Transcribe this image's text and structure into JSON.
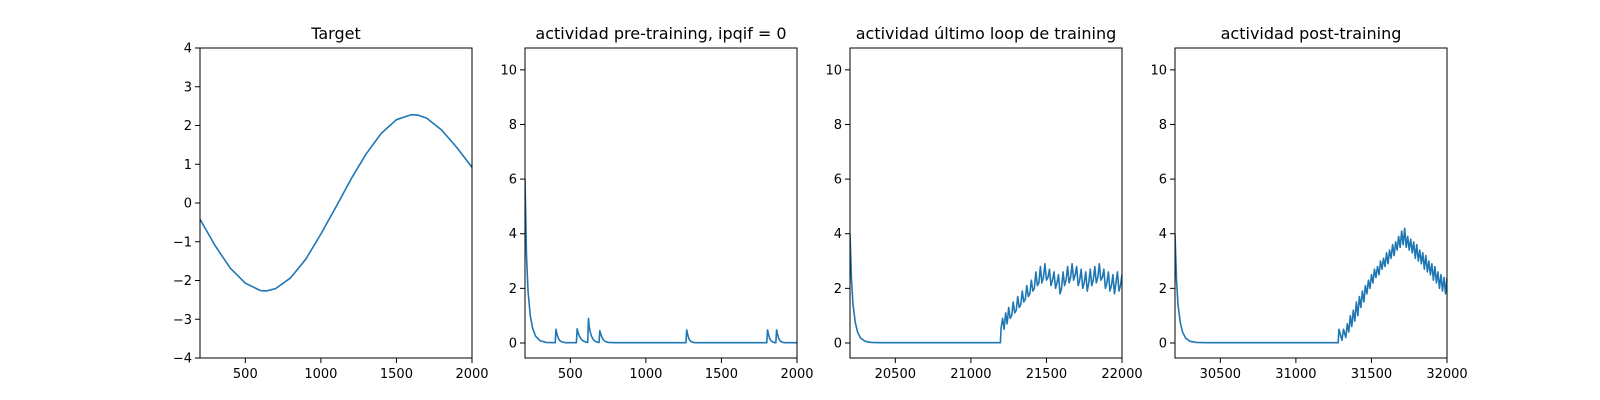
{
  "chart_data": [
    {
      "type": "line",
      "title": "Target",
      "xlim": [
        200,
        2000
      ],
      "ylim": [
        -4,
        4
      ],
      "xticks": [
        500,
        1000,
        1500,
        2000
      ],
      "yticks": [
        -4,
        -3,
        -2,
        -1,
        0,
        1,
        2,
        3,
        4
      ],
      "xtick_labels": [
        "500",
        "1000",
        "1500",
        "2000"
      ],
      "ytick_labels": [
        "−4",
        "−3",
        "−2",
        "−1",
        "0",
        "1",
        "2",
        "3",
        "4"
      ],
      "color": "#1f77b4",
      "series": [
        {
          "x": [
            200,
            300,
            400,
            500,
            600,
            640,
            700,
            800,
            900,
            1000,
            1100,
            1200,
            1300,
            1400,
            1500,
            1600,
            1640,
            1700,
            1800,
            1900,
            2000
          ],
          "y": [
            -0.42,
            -1.1,
            -1.68,
            -2.07,
            -2.26,
            -2.27,
            -2.21,
            -1.93,
            -1.45,
            -0.8,
            -0.1,
            0.62,
            1.27,
            1.8,
            2.15,
            2.28,
            2.27,
            2.19,
            1.88,
            1.43,
            0.92
          ]
        }
      ]
    },
    {
      "type": "line",
      "title": "actividad pre-training, ipqif = 0",
      "xlim": [
        200,
        2000
      ],
      "ylim": [
        -0.55,
        10.8
      ],
      "xticks": [
        500,
        1000,
        1500,
        2000
      ],
      "yticks": [
        0,
        2,
        4,
        6,
        8,
        10
      ],
      "xtick_labels": [
        "500",
        "1000",
        "1500",
        "2000"
      ],
      "ytick_labels": [
        "0",
        "2",
        "4",
        "6",
        "8",
        "10"
      ],
      "color": "#1f77b4",
      "series": [
        {
          "x": [
            200,
            210,
            220,
            235,
            250,
            270,
            300,
            340,
            400,
            405,
            412,
            420,
            430,
            445,
            460,
            470,
            480,
            500,
            540,
            545,
            550,
            560,
            575,
            590,
            605,
            615,
            620,
            625,
            632,
            640,
            650,
            665,
            680,
            690,
            695,
            700,
            708,
            718,
            730,
            750,
            800,
            1000,
            1200,
            1265,
            1270,
            1275,
            1282,
            1290,
            1300,
            1315,
            1330,
            1400,
            1600,
            1800,
            1805,
            1810,
            1818,
            1828,
            1840,
            1860,
            1865,
            1870,
            1878,
            1888,
            1900,
            1920,
            1950,
            2000
          ],
          "y": [
            6.0,
            3.2,
            1.9,
            1.0,
            0.55,
            0.25,
            0.08,
            0.02,
            0.01,
            0.5,
            0.32,
            0.18,
            0.09,
            0.04,
            0.02,
            0.01,
            0.01,
            0.01,
            0.01,
            0.52,
            0.4,
            0.25,
            0.12,
            0.06,
            0.03,
            0.02,
            0.9,
            0.6,
            0.4,
            0.25,
            0.14,
            0.06,
            0.03,
            0.02,
            0.45,
            0.35,
            0.22,
            0.12,
            0.06,
            0.02,
            0.01,
            0.01,
            0.01,
            0.01,
            0.48,
            0.35,
            0.2,
            0.1,
            0.05,
            0.02,
            0.01,
            0.01,
            0.01,
            0.01,
            0.48,
            0.35,
            0.18,
            0.08,
            0.03,
            0.01,
            0.48,
            0.35,
            0.18,
            0.08,
            0.03,
            0.01,
            0.01,
            0.01
          ]
        }
      ]
    },
    {
      "type": "line",
      "title": "actividad último loop de training",
      "xlim": [
        20200,
        22000
      ],
      "ylim": [
        -0.55,
        10.8
      ],
      "xticks": [
        20500,
        21000,
        21500,
        22000
      ],
      "yticks": [
        0,
        2,
        4,
        6,
        8,
        10
      ],
      "xtick_labels": [
        "20500",
        "21000",
        "21500",
        "22000"
      ],
      "ytick_labels": [
        "0",
        "2",
        "4",
        "6",
        "8",
        "10"
      ],
      "color": "#1f77b4",
      "series": [
        {
          "x": [
            20200,
            20210,
            20220,
            20235,
            20250,
            20270,
            20300,
            20340,
            20400,
            20600,
            20800,
            21000,
            21195,
            21200,
            21210,
            21220,
            21230,
            21240,
            21250,
            21260,
            21270,
            21280,
            21290,
            21300,
            21310,
            21320,
            21330,
            21340,
            21350,
            21360,
            21370,
            21380,
            21390,
            21400,
            21410,
            21420,
            21430,
            21440,
            21450,
            21460,
            21470,
            21480,
            21490,
            21500,
            21510,
            21520,
            21530,
            21540,
            21550,
            21560,
            21570,
            21580,
            21590,
            21600,
            21610,
            21620,
            21630,
            21640,
            21650,
            21660,
            21670,
            21680,
            21690,
            21700,
            21710,
            21720,
            21730,
            21740,
            21750,
            21760,
            21770,
            21780,
            21790,
            21800,
            21810,
            21820,
            21830,
            21840,
            21850,
            21860,
            21870,
            21880,
            21890,
            21900,
            21910,
            21920,
            21930,
            21940,
            21950,
            21960,
            21970,
            21980,
            21990,
            22000
          ],
          "y": [
            4.0,
            2.3,
            1.4,
            0.75,
            0.4,
            0.18,
            0.06,
            0.02,
            0.01,
            0.01,
            0.01,
            0.01,
            0.01,
            0.55,
            0.9,
            0.5,
            1.1,
            0.7,
            1.3,
            0.9,
            1.0,
            1.5,
            1.1,
            1.2,
            1.7,
            1.3,
            1.4,
            1.9,
            1.5,
            1.6,
            2.1,
            1.7,
            1.8,
            2.3,
            1.9,
            2.0,
            2.6,
            2.1,
            2.2,
            2.8,
            2.2,
            2.4,
            2.9,
            2.3,
            2.4,
            2.7,
            2.1,
            2.3,
            2.6,
            2.0,
            2.2,
            2.5,
            1.8,
            2.0,
            2.6,
            2.1,
            2.3,
            2.8,
            2.2,
            2.4,
            2.9,
            2.3,
            2.5,
            2.8,
            2.1,
            2.3,
            2.7,
            2.0,
            2.2,
            2.6,
            1.9,
            2.2,
            2.7,
            2.1,
            2.3,
            2.8,
            2.2,
            2.4,
            2.9,
            2.3,
            2.4,
            2.7,
            2.0,
            2.2,
            2.6,
            1.9,
            2.1,
            2.5,
            1.8,
            2.2,
            2.6,
            1.9,
            2.1,
            2.5
          ]
        }
      ]
    },
    {
      "type": "line",
      "title": "actividad post-training",
      "xlim": [
        30200,
        32000
      ],
      "ylim": [
        -0.55,
        10.8
      ],
      "xticks": [
        30500,
        31000,
        31500,
        32000
      ],
      "yticks": [
        0,
        2,
        4,
        6,
        8,
        10
      ],
      "xtick_labels": [
        "30500",
        "31000",
        "31500",
        "32000"
      ],
      "ytick_labels": [
        "0",
        "2",
        "4",
        "6",
        "8",
        "10"
      ],
      "color": "#1f77b4",
      "series": [
        {
          "x": [
            30200,
            30210,
            30220,
            30235,
            30250,
            30270,
            30300,
            30340,
            30400,
            30600,
            30800,
            31000,
            31200,
            31280,
            31285,
            31295,
            31305,
            31315,
            31330,
            31340,
            31350,
            31360,
            31370,
            31380,
            31390,
            31400,
            31410,
            31420,
            31430,
            31440,
            31450,
            31460,
            31470,
            31480,
            31490,
            31500,
            31510,
            31520,
            31530,
            31540,
            31550,
            31560,
            31570,
            31580,
            31590,
            31600,
            31610,
            31620,
            31630,
            31640,
            31650,
            31660,
            31670,
            31680,
            31690,
            31700,
            31710,
            31720,
            31730,
            31740,
            31750,
            31760,
            31770,
            31780,
            31790,
            31800,
            31810,
            31820,
            31830,
            31840,
            31850,
            31860,
            31870,
            31880,
            31890,
            31900,
            31910,
            31920,
            31930,
            31940,
            31950,
            31960,
            31970,
            31980,
            31990,
            32000
          ],
          "y": [
            4.0,
            2.3,
            1.4,
            0.75,
            0.4,
            0.18,
            0.06,
            0.02,
            0.01,
            0.01,
            0.01,
            0.01,
            0.01,
            0.01,
            0.5,
            0.3,
            0.1,
            0.5,
            0.2,
            0.7,
            0.4,
            1.0,
            0.6,
            1.2,
            0.8,
            1.5,
            1.0,
            1.7,
            1.3,
            1.9,
            1.5,
            2.1,
            1.8,
            2.3,
            2.0,
            2.5,
            2.2,
            2.7,
            2.4,
            2.8,
            2.5,
            3.0,
            2.7,
            3.1,
            2.8,
            3.3,
            2.9,
            3.4,
            3.1,
            3.6,
            3.2,
            3.7,
            3.4,
            3.9,
            3.5,
            4.1,
            3.6,
            4.2,
            3.5,
            3.9,
            3.4,
            3.8,
            3.3,
            3.7,
            3.1,
            3.6,
            3.0,
            3.4,
            2.9,
            3.3,
            2.7,
            3.2,
            2.6,
            3.0,
            2.5,
            2.9,
            2.3,
            2.8,
            2.2,
            2.6,
            2.0,
            2.5,
            1.9,
            2.4,
            1.8,
            2.4
          ]
        }
      ]
    }
  ]
}
